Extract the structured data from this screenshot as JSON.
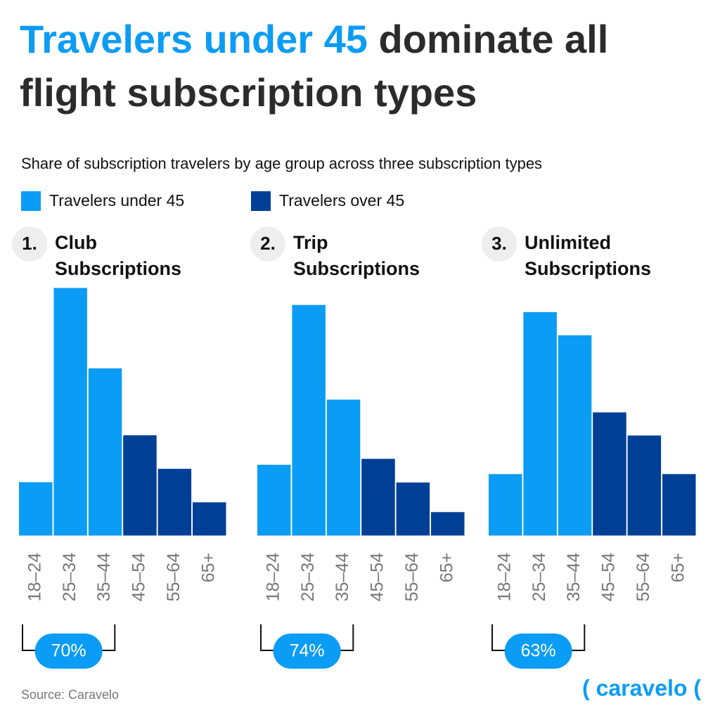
{
  "title_highlight": "Travelers under 45",
  "title_rest": "dominate all flight subscription types",
  "subtitle": "Share of subscription travelers by age group across three subscription types",
  "legend": [
    {
      "name": "Travelers under 45",
      "color": "#0b9cf5"
    },
    {
      "name": "Travelers over 45",
      "color": "#003f96"
    }
  ],
  "chart_data": [
    {
      "type": "bar",
      "number": "1.",
      "title": "Club Subscriptions",
      "categories": [
        "18–24",
        "25–34",
        "35–44",
        "45–54",
        "55–64",
        "65+"
      ],
      "values": [
        8,
        37,
        25,
        15,
        10,
        5
      ],
      "colors": [
        "#0b9cf5",
        "#0b9cf5",
        "#0b9cf5",
        "#003f96",
        "#003f96",
        "#003f96"
      ],
      "ylim": [
        0,
        38
      ],
      "under_45_share": {
        "value": 70,
        "label": "70%"
      }
    },
    {
      "type": "bar",
      "number": "2.",
      "title": "Trip Subscriptions",
      "categories": [
        "18–24",
        "25–34",
        "35–44",
        "45–54",
        "55–64",
        "65+"
      ],
      "values": [
        12,
        39,
        23,
        13,
        9,
        4
      ],
      "colors": [
        "#0b9cf5",
        "#0b9cf5",
        "#0b9cf5",
        "#003f96",
        "#003f96",
        "#003f96"
      ],
      "ylim": [
        0,
        43
      ],
      "under_45_share": {
        "value": 74,
        "label": "74%"
      }
    },
    {
      "type": "bar",
      "number": "3.",
      "title": "Unlimited Subscriptions",
      "categories": [
        "18–24",
        "25–34",
        "35–44",
        "45–54",
        "55–64",
        "65+"
      ],
      "values": [
        8,
        29,
        26,
        16,
        13,
        8
      ],
      "colors": [
        "#0b9cf5",
        "#0b9cf5",
        "#0b9cf5",
        "#003f96",
        "#003f96",
        "#003f96"
      ],
      "ylim": [
        0,
        33
      ],
      "under_45_share": {
        "value": 63,
        "label": "63%"
      }
    }
  ],
  "source": "Source: Caravelo",
  "logo": "( caravelo ("
}
